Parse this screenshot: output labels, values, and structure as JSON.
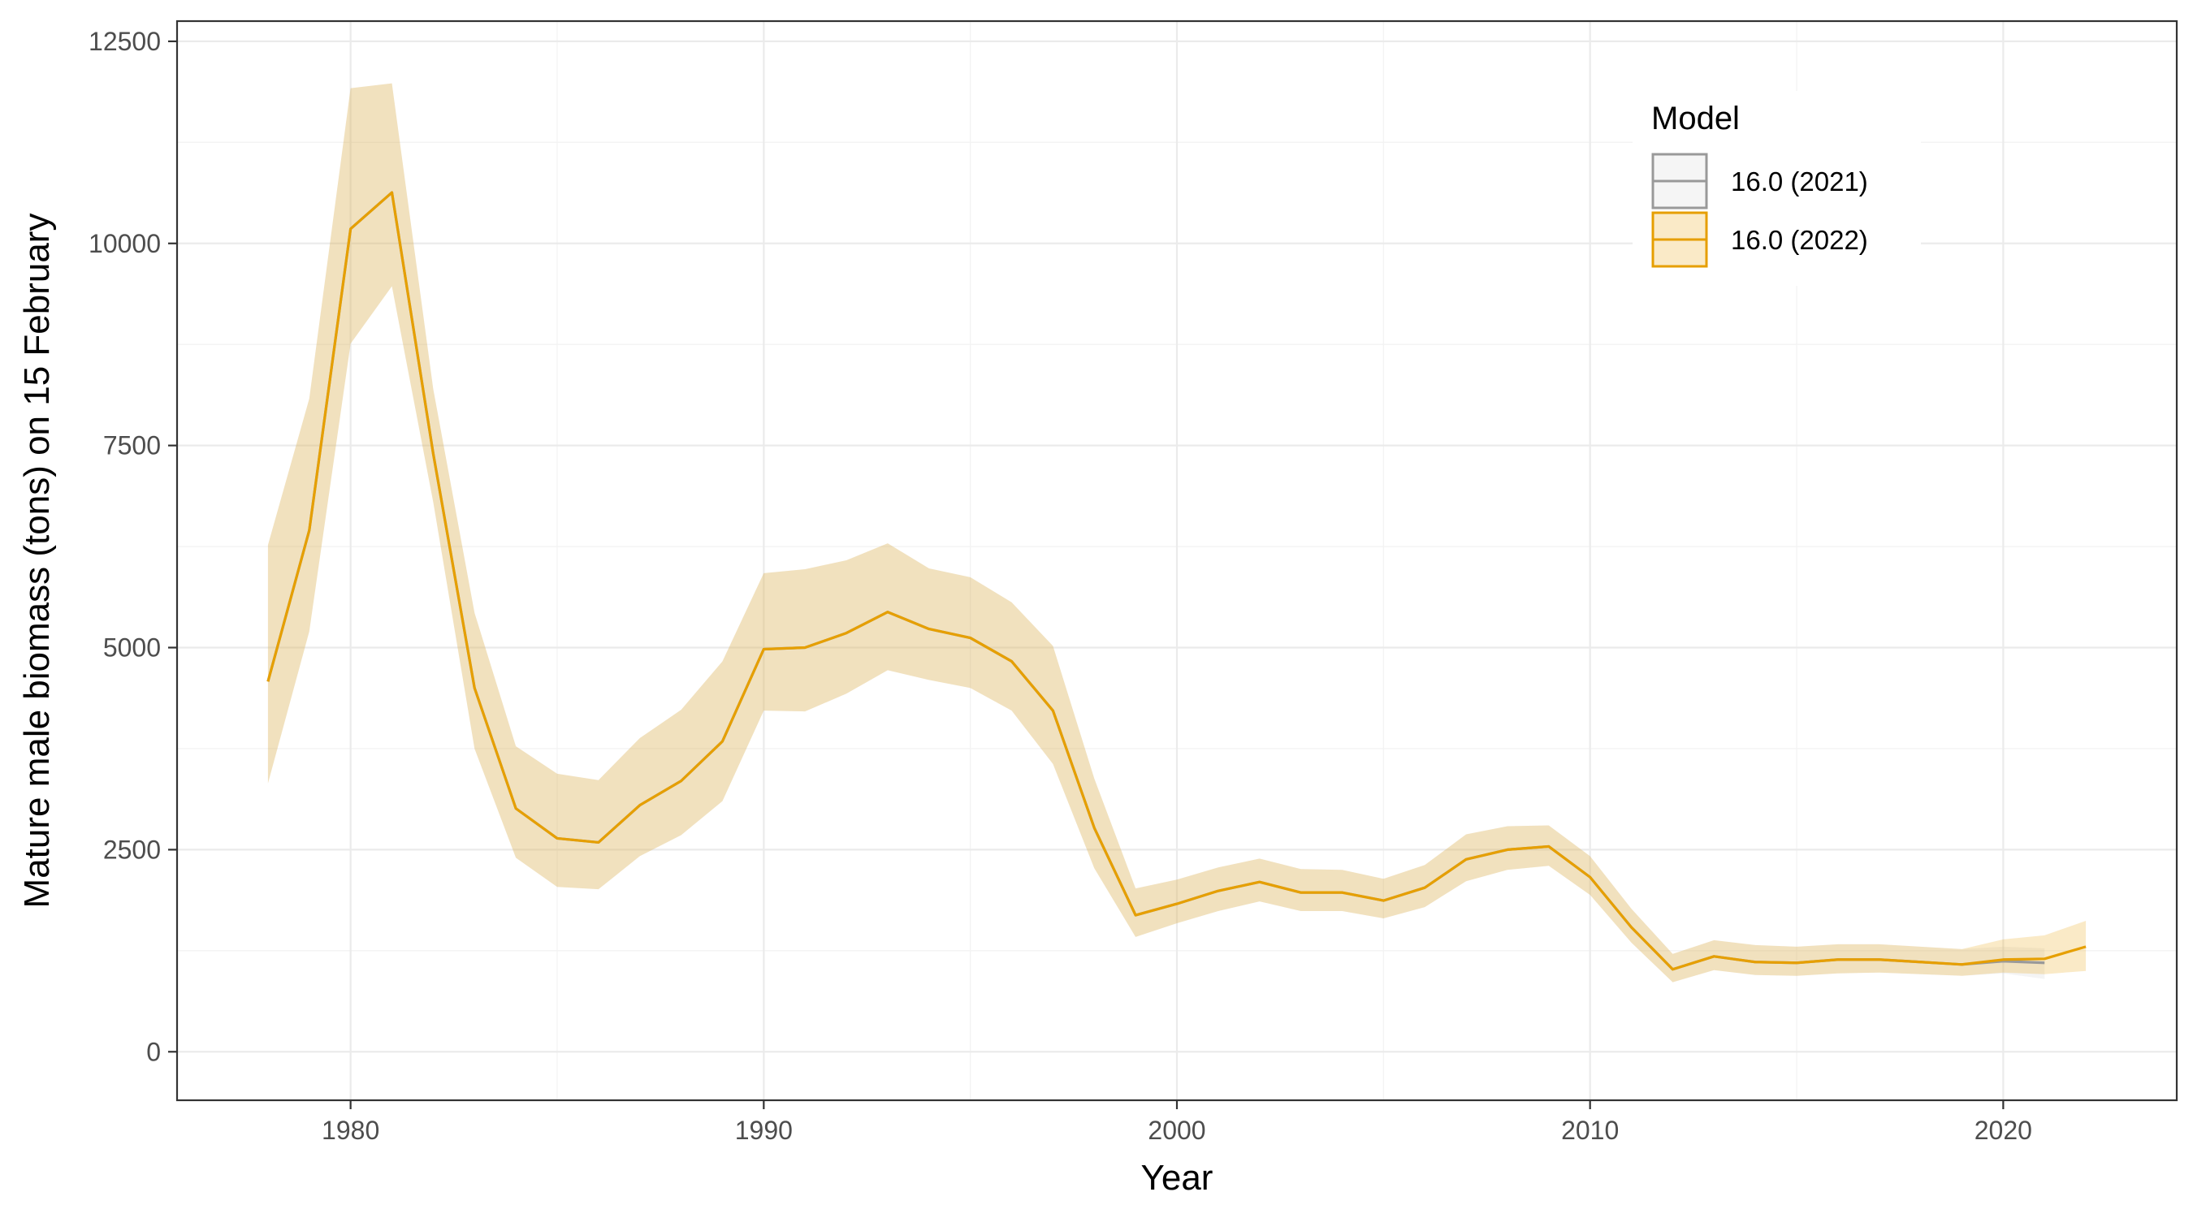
{
  "chart_data": {
    "type": "line",
    "xlabel": "Year",
    "ylabel": "Mature male biomass (tons) on 15 February",
    "xlim": [
      1975.8,
      2024.2
    ],
    "ylim": [
      -600,
      12750
    ],
    "x_ticks": [
      1980,
      1990,
      2000,
      2010,
      2020
    ],
    "y_ticks": [
      0,
      2500,
      5000,
      7500,
      10000,
      12500
    ],
    "x_tick_labels": [
      "1980",
      "1990",
      "2000",
      "2010",
      "2020"
    ],
    "y_tick_labels": [
      "0",
      "2500",
      "5000",
      "7500",
      "10000",
      "12500"
    ],
    "grid": true,
    "legend": {
      "title": "Model",
      "position": "top-right",
      "entries": [
        "16.0 (2021)",
        "16.0 (2022)"
      ]
    },
    "series": [
      {
        "name": "16.0 (2021)",
        "line_color": "#999999",
        "fill_color": "#cccccc",
        "x": [
          1978,
          1979,
          1980,
          1981,
          1982,
          1983,
          1984,
          1985,
          1986,
          1987,
          1988,
          1989,
          1990,
          1991,
          1992,
          1993,
          1994,
          1995,
          1996,
          1997,
          1998,
          1999,
          2000,
          2001,
          2002,
          2003,
          2004,
          2005,
          2006,
          2007,
          2008,
          2009,
          2010,
          2011,
          2012,
          2013,
          2014,
          2015,
          2016,
          2017,
          2018,
          2019,
          2020,
          2021
        ],
        "y": [
          4580,
          6450,
          10180,
          10630,
          7400,
          4500,
          3010,
          2640,
          2590,
          3050,
          3350,
          3840,
          4980,
          5000,
          5180,
          5440,
          5230,
          5120,
          4830,
          4220,
          2770,
          1690,
          1830,
          1990,
          2100,
          1970,
          1970,
          1870,
          2030,
          2380,
          2500,
          2540,
          2160,
          1540,
          1020,
          1180,
          1110,
          1100,
          1140,
          1140,
          1110,
          1080,
          1120,
          1100
        ],
        "lower": [
          3320,
          5200,
          8760,
          9470,
          6800,
          3750,
          2400,
          2040,
          2010,
          2420,
          2680,
          3100,
          4220,
          4210,
          4430,
          4720,
          4600,
          4500,
          4220,
          3560,
          2270,
          1420,
          1590,
          1740,
          1860,
          1740,
          1740,
          1650,
          1790,
          2110,
          2250,
          2300,
          1940,
          1350,
          860,
          1010,
          950,
          940,
          970,
          980,
          960,
          940,
          970,
          900
        ],
        "upper": [
          6270,
          8080,
          11920,
          11980,
          8200,
          5430,
          3780,
          3440,
          3360,
          3880,
          4230,
          4830,
          5920,
          5970,
          6080,
          6290,
          5980,
          5870,
          5560,
          5020,
          3380,
          2020,
          2130,
          2280,
          2390,
          2260,
          2250,
          2140,
          2310,
          2690,
          2790,
          2800,
          2420,
          1770,
          1210,
          1380,
          1320,
          1300,
          1330,
          1330,
          1300,
          1270,
          1300,
          1280
        ]
      },
      {
        "name": "16.0 (2022)",
        "line_color": "#e69f00",
        "fill_color": "#e69f00",
        "x": [
          1978,
          1979,
          1980,
          1981,
          1982,
          1983,
          1984,
          1985,
          1986,
          1987,
          1988,
          1989,
          1990,
          1991,
          1992,
          1993,
          1994,
          1995,
          1996,
          1997,
          1998,
          1999,
          2000,
          2001,
          2002,
          2003,
          2004,
          2005,
          2006,
          2007,
          2008,
          2009,
          2010,
          2011,
          2012,
          2013,
          2014,
          2015,
          2016,
          2017,
          2018,
          2019,
          2020,
          2021,
          2022
        ],
        "y": [
          4580,
          6450,
          10180,
          10630,
          7400,
          4500,
          3010,
          2640,
          2590,
          3050,
          3350,
          3840,
          4980,
          5000,
          5180,
          5440,
          5230,
          5120,
          4830,
          4220,
          2770,
          1690,
          1830,
          1990,
          2100,
          1970,
          1970,
          1870,
          2030,
          2380,
          2500,
          2540,
          2160,
          1540,
          1020,
          1180,
          1110,
          1100,
          1140,
          1140,
          1110,
          1080,
          1140,
          1150,
          1300
        ],
        "lower": [
          3320,
          5200,
          8760,
          9470,
          6800,
          3750,
          2400,
          2040,
          2010,
          2420,
          2680,
          3100,
          4220,
          4210,
          4430,
          4720,
          4600,
          4500,
          4220,
          3560,
          2270,
          1420,
          1590,
          1740,
          1860,
          1740,
          1740,
          1650,
          1790,
          2110,
          2250,
          2300,
          1940,
          1350,
          860,
          1010,
          950,
          940,
          970,
          980,
          960,
          940,
          980,
          960,
          1000
        ],
        "upper": [
          6270,
          8080,
          11920,
          11980,
          8200,
          5430,
          3780,
          3440,
          3360,
          3880,
          4230,
          4830,
          5920,
          5970,
          6080,
          6290,
          5980,
          5870,
          5560,
          5020,
          3380,
          2020,
          2130,
          2280,
          2390,
          2260,
          2250,
          2140,
          2310,
          2690,
          2790,
          2800,
          2420,
          1770,
          1210,
          1380,
          1320,
          1300,
          1330,
          1330,
          1300,
          1270,
          1390,
          1440,
          1620
        ]
      }
    ]
  }
}
